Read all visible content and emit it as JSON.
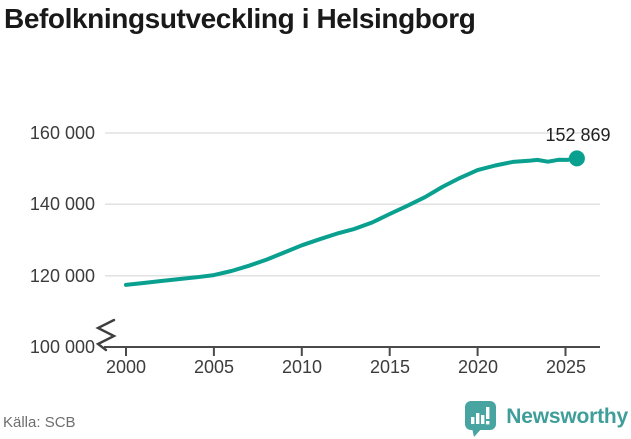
{
  "title": "Befolkningsutveckling i Helsingborg",
  "source": "Källa: SCB",
  "branding": {
    "name": "Newsworthy",
    "icon": "newsworthy-bars-bubble-icon",
    "color": "#3f9e9a"
  },
  "colors": {
    "line": "#0aa08f",
    "gridline": "#e2e2e2",
    "axis": "#4a4a4a",
    "title_text": "#191919",
    "tick_text": "#3c3c3c",
    "source_text": "#6e6e6e",
    "brand_teal": "#3f9e9a"
  },
  "chart_data": {
    "type": "line",
    "title": "Befolkningsutveckling i Helsingborg",
    "xlabel": "",
    "ylabel": "",
    "grid": "horizontal",
    "axis_break": true,
    "ylim": [
      100000,
      160000
    ],
    "x_tick_values": [
      2000,
      2005,
      2010,
      2015,
      2020,
      2025
    ],
    "x_tick_labels": [
      "2000",
      "2005",
      "2010",
      "2015",
      "2020",
      "2025"
    ],
    "y_tick_values": [
      100000,
      120000,
      140000,
      160000
    ],
    "y_tick_labels": [
      "100 000",
      "120 000",
      "140 000",
      "160 000"
    ],
    "end_label": "152 869",
    "end_value": 152869,
    "points": [
      [
        2000,
        117400
      ],
      [
        2001,
        117950
      ],
      [
        2002,
        118500
      ],
      [
        2003,
        119050
      ],
      [
        2004,
        119550
      ],
      [
        2005,
        120150
      ],
      [
        2006,
        121300
      ],
      [
        2007,
        122800
      ],
      [
        2008,
        124500
      ],
      [
        2009,
        126500
      ],
      [
        2010,
        128500
      ],
      [
        2011,
        130200
      ],
      [
        2012,
        131800
      ],
      [
        2013,
        133100
      ],
      [
        2014,
        134900
      ],
      [
        2015,
        137300
      ],
      [
        2016,
        139600
      ],
      [
        2017,
        142000
      ],
      [
        2018,
        144900
      ],
      [
        2019,
        147400
      ],
      [
        2020,
        149600
      ],
      [
        2021,
        150900
      ],
      [
        2022,
        151900
      ],
      [
        2023,
        152250
      ],
      [
        2023.4,
        152450
      ],
      [
        2024,
        151950
      ],
      [
        2024.6,
        152500
      ],
      [
        2025.1,
        152450
      ],
      [
        2025.65,
        152869
      ]
    ]
  }
}
